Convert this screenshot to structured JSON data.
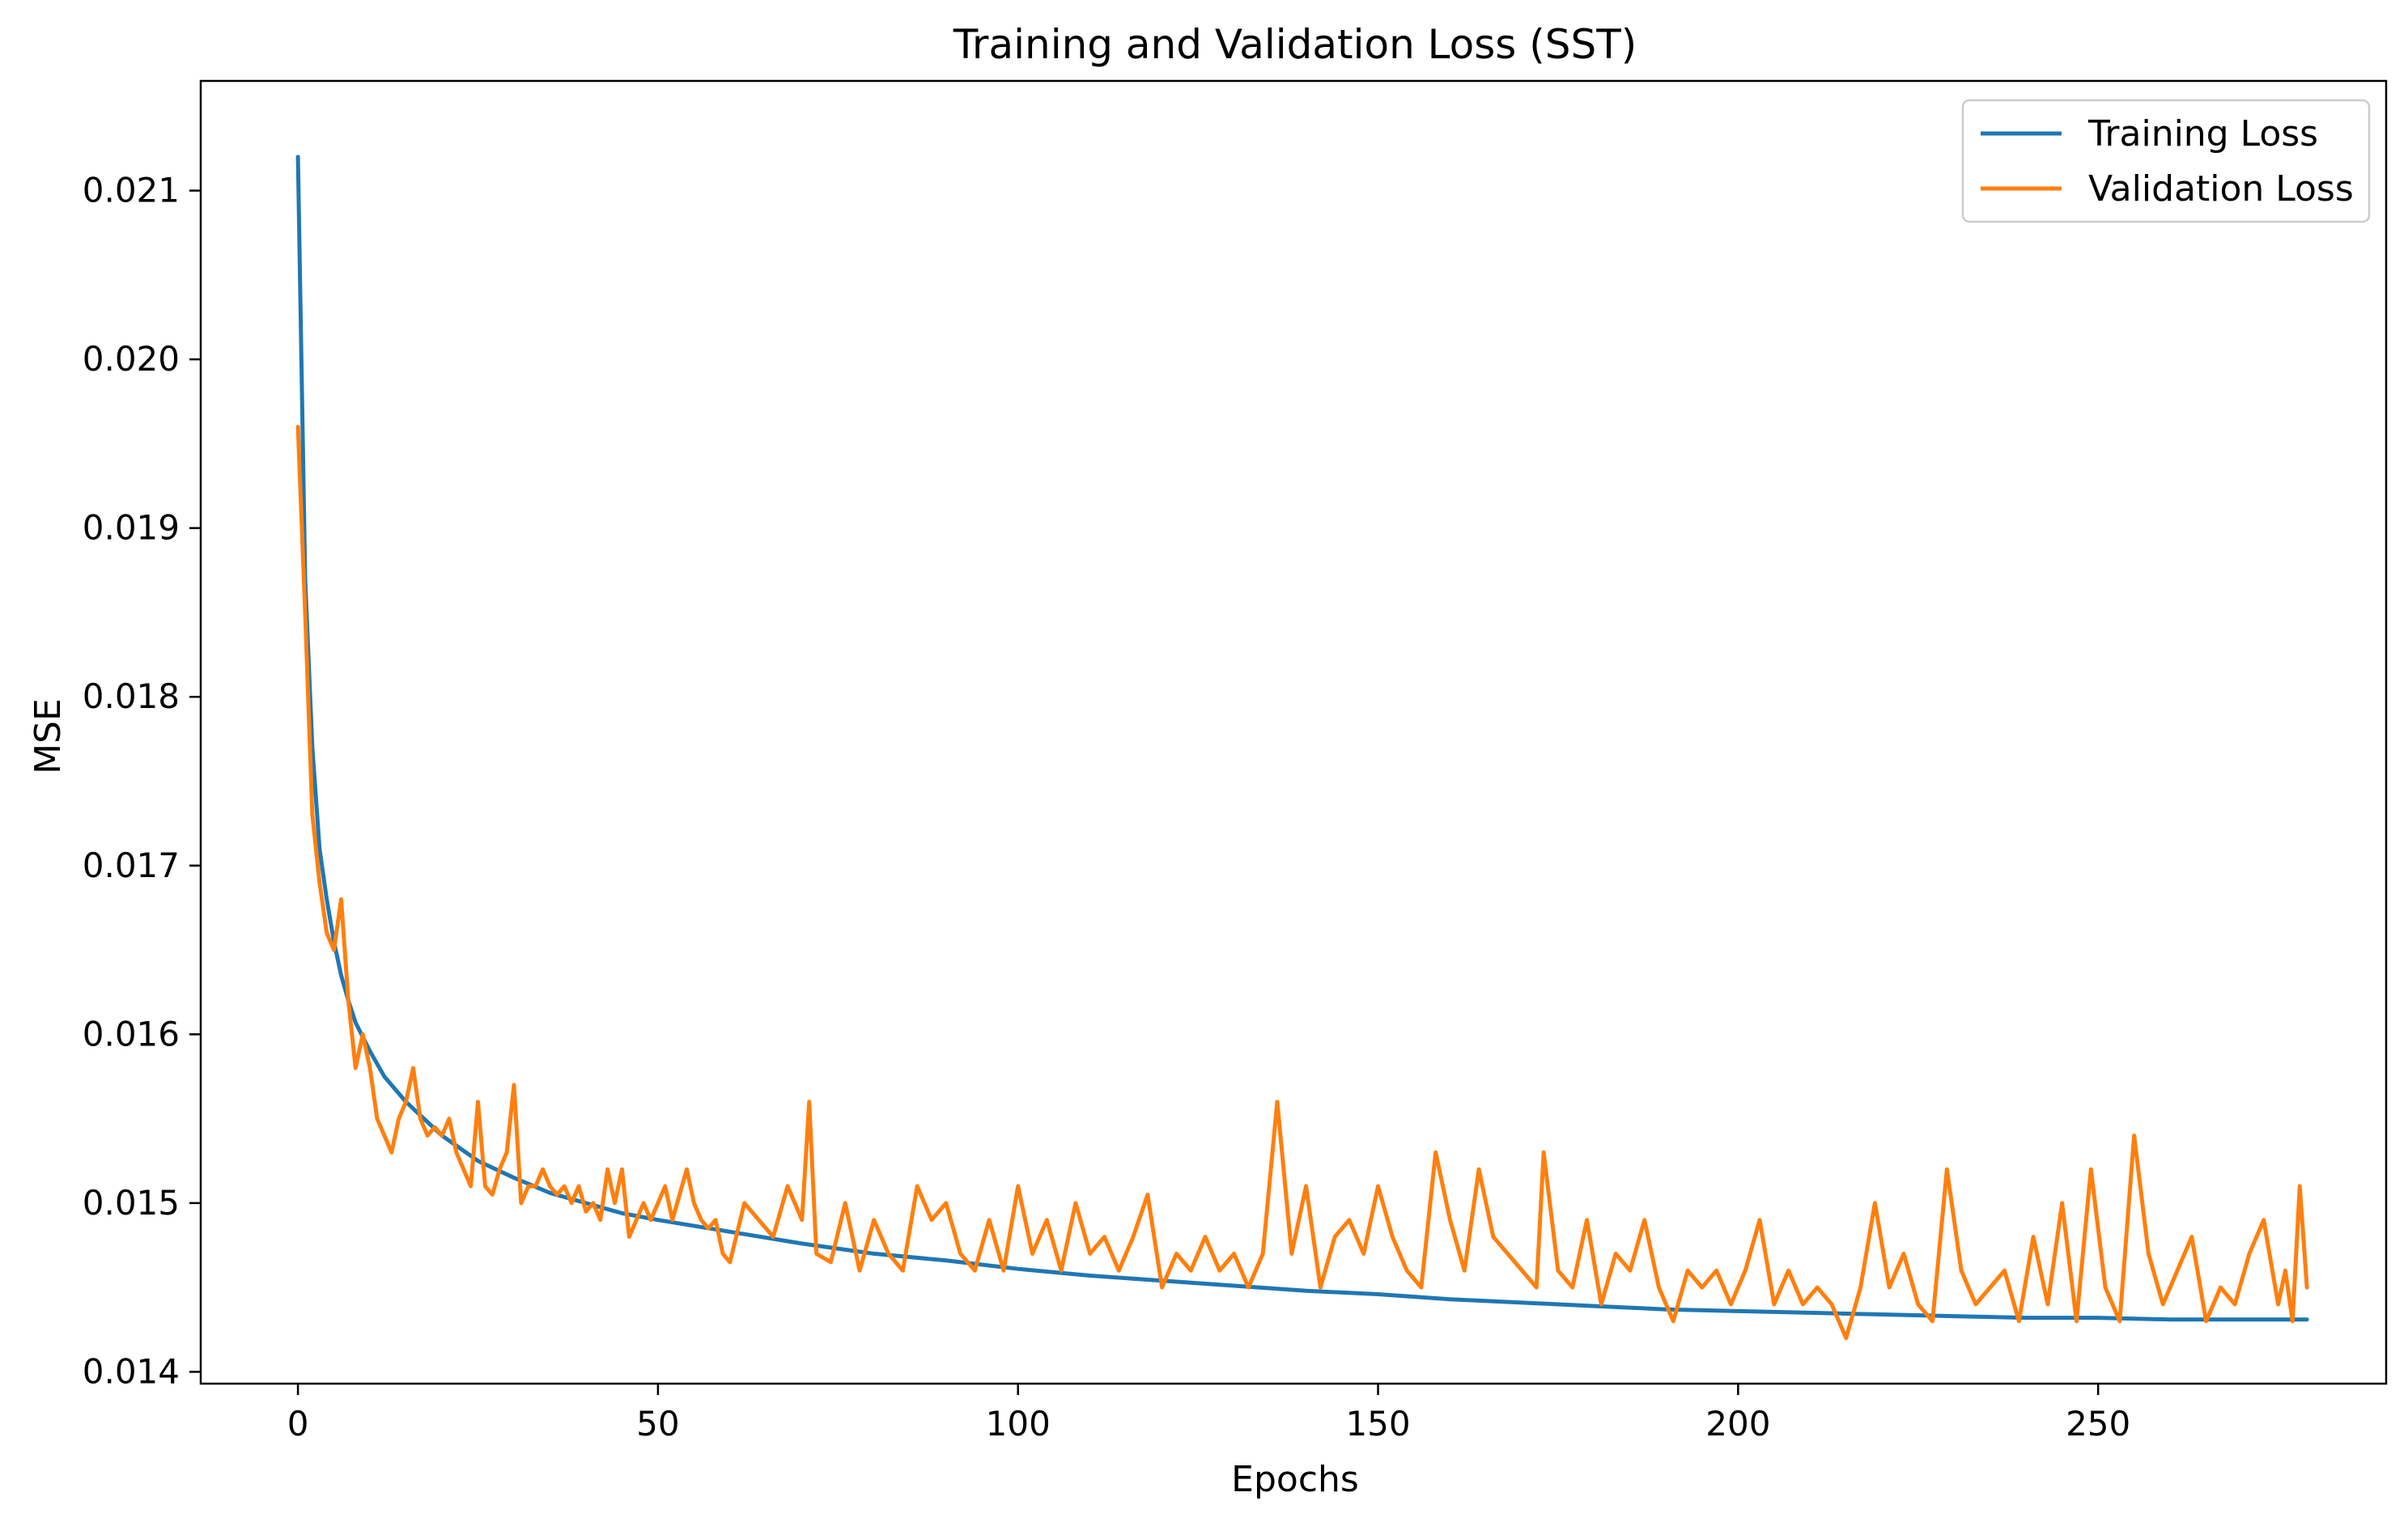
{
  "chart_data": {
    "type": "line",
    "title": "Training and Validation Loss (SST)",
    "xlabel": "Epochs",
    "ylabel": "MSE",
    "xlim": [
      -13.5,
      290
    ],
    "ylim": [
      0.01393,
      0.02165
    ],
    "xticks": [
      0,
      50,
      100,
      150,
      200,
      250
    ],
    "xtick_labels": [
      "0",
      "50",
      "100",
      "150",
      "200",
      "250"
    ],
    "yticks": [
      0.014,
      0.015,
      0.016,
      0.017,
      0.018,
      0.019,
      0.02,
      0.021
    ],
    "ytick_labels": [
      "0.014",
      "0.015",
      "0.016",
      "0.017",
      "0.018",
      "0.019",
      "0.020",
      "0.021"
    ],
    "grid": false,
    "legend_position": "top-right",
    "series": [
      {
        "name": "Training Loss",
        "color": "#1f77b4",
        "points": [
          [
            0,
            0.0212
          ],
          [
            1,
            0.0187
          ],
          [
            2,
            0.0177
          ],
          [
            3,
            0.0171
          ],
          [
            4,
            0.0168
          ],
          [
            5,
            0.01655
          ],
          [
            6,
            0.01635
          ],
          [
            7,
            0.0162
          ],
          [
            8,
            0.01607
          ],
          [
            10,
            0.0159
          ],
          [
            12,
            0.01575
          ],
          [
            15,
            0.0156
          ],
          [
            18,
            0.01548
          ],
          [
            20,
            0.0154
          ],
          [
            25,
            0.01525
          ],
          [
            30,
            0.01515
          ],
          [
            35,
            0.01506
          ],
          [
            40,
            0.015
          ],
          [
            45,
            0.01494
          ],
          [
            50,
            0.0149
          ],
          [
            60,
            0.01483
          ],
          [
            70,
            0.01476
          ],
          [
            80,
            0.0147
          ],
          [
            90,
            0.01466
          ],
          [
            100,
            0.01461
          ],
          [
            110,
            0.01457
          ],
          [
            120,
            0.01454
          ],
          [
            130,
            0.01451
          ],
          [
            140,
            0.01448
          ],
          [
            150,
            0.01446
          ],
          [
            160,
            0.01443
          ],
          [
            170,
            0.01441
          ],
          [
            180,
            0.01439
          ],
          [
            190,
            0.01437
          ],
          [
            200,
            0.01436
          ],
          [
            210,
            0.01435
          ],
          [
            220,
            0.01434
          ],
          [
            230,
            0.01433
          ],
          [
            240,
            0.01432
          ],
          [
            250,
            0.01432
          ],
          [
            260,
            0.01431
          ],
          [
            270,
            0.01431
          ],
          [
            279,
            0.01431
          ]
        ]
      },
      {
        "name": "Validation Loss",
        "color": "#ff7f0e",
        "points": [
          [
            0,
            0.0196
          ],
          [
            1,
            0.0185
          ],
          [
            2,
            0.0173
          ],
          [
            3,
            0.0169
          ],
          [
            4,
            0.0166
          ],
          [
            5,
            0.0165
          ],
          [
            6,
            0.0168
          ],
          [
            7,
            0.0162
          ],
          [
            8,
            0.0158
          ],
          [
            9,
            0.016
          ],
          [
            10,
            0.0158
          ],
          [
            11,
            0.0155
          ],
          [
            12,
            0.0154
          ],
          [
            13,
            0.0153
          ],
          [
            14,
            0.0155
          ],
          [
            15,
            0.0156
          ],
          [
            16,
            0.0158
          ],
          [
            17,
            0.0155
          ],
          [
            18,
            0.0154
          ],
          [
            19,
            0.01545
          ],
          [
            20,
            0.0154
          ],
          [
            21,
            0.0155
          ],
          [
            22,
            0.0153
          ],
          [
            23,
            0.0152
          ],
          [
            24,
            0.0151
          ],
          [
            25,
            0.0156
          ],
          [
            26,
            0.0151
          ],
          [
            27,
            0.01505
          ],
          [
            28,
            0.0152
          ],
          [
            29,
            0.0153
          ],
          [
            30,
            0.0157
          ],
          [
            31,
            0.015
          ],
          [
            32,
            0.0151
          ],
          [
            33,
            0.0151
          ],
          [
            34,
            0.0152
          ],
          [
            35,
            0.0151
          ],
          [
            36,
            0.01505
          ],
          [
            37,
            0.0151
          ],
          [
            38,
            0.015
          ],
          [
            39,
            0.0151
          ],
          [
            40,
            0.01495
          ],
          [
            41,
            0.015
          ],
          [
            42,
            0.0149
          ],
          [
            43,
            0.0152
          ],
          [
            44,
            0.015
          ],
          [
            45,
            0.0152
          ],
          [
            46,
            0.0148
          ],
          [
            47,
            0.0149
          ],
          [
            48,
            0.015
          ],
          [
            49,
            0.0149
          ],
          [
            50,
            0.015
          ],
          [
            51,
            0.0151
          ],
          [
            52,
            0.0149
          ],
          [
            53,
            0.01505
          ],
          [
            54,
            0.0152
          ],
          [
            55,
            0.015
          ],
          [
            56,
            0.0149
          ],
          [
            57,
            0.01485
          ],
          [
            58,
            0.0149
          ],
          [
            59,
            0.0147
          ],
          [
            60,
            0.01465
          ],
          [
            62,
            0.015
          ],
          [
            64,
            0.0149
          ],
          [
            66,
            0.0148
          ],
          [
            68,
            0.0151
          ],
          [
            70,
            0.0149
          ],
          [
            71,
            0.0156
          ],
          [
            72,
            0.0147
          ],
          [
            74,
            0.01465
          ],
          [
            76,
            0.015
          ],
          [
            78,
            0.0146
          ],
          [
            80,
            0.0149
          ],
          [
            82,
            0.0147
          ],
          [
            84,
            0.0146
          ],
          [
            86,
            0.0151
          ],
          [
            88,
            0.0149
          ],
          [
            90,
            0.015
          ],
          [
            92,
            0.0147
          ],
          [
            94,
            0.0146
          ],
          [
            96,
            0.0149
          ],
          [
            98,
            0.0146
          ],
          [
            100,
            0.0151
          ],
          [
            102,
            0.0147
          ],
          [
            104,
            0.0149
          ],
          [
            106,
            0.0146
          ],
          [
            108,
            0.015
          ],
          [
            110,
            0.0147
          ],
          [
            112,
            0.0148
          ],
          [
            114,
            0.0146
          ],
          [
            116,
            0.0148
          ],
          [
            118,
            0.01505
          ],
          [
            120,
            0.0145
          ],
          [
            122,
            0.0147
          ],
          [
            124,
            0.0146
          ],
          [
            126,
            0.0148
          ],
          [
            128,
            0.0146
          ],
          [
            130,
            0.0147
          ],
          [
            132,
            0.0145
          ],
          [
            134,
            0.0147
          ],
          [
            136,
            0.0156
          ],
          [
            138,
            0.0147
          ],
          [
            140,
            0.0151
          ],
          [
            142,
            0.0145
          ],
          [
            144,
            0.0148
          ],
          [
            146,
            0.0149
          ],
          [
            148,
            0.0147
          ],
          [
            150,
            0.0151
          ],
          [
            152,
            0.0148
          ],
          [
            154,
            0.0146
          ],
          [
            156,
            0.0145
          ],
          [
            158,
            0.0153
          ],
          [
            160,
            0.0149
          ],
          [
            162,
            0.0146
          ],
          [
            164,
            0.0152
          ],
          [
            166,
            0.0148
          ],
          [
            168,
            0.0147
          ],
          [
            170,
            0.0146
          ],
          [
            172,
            0.0145
          ],
          [
            173,
            0.0153
          ],
          [
            175,
            0.0146
          ],
          [
            177,
            0.0145
          ],
          [
            179,
            0.0149
          ],
          [
            181,
            0.0144
          ],
          [
            183,
            0.0147
          ],
          [
            185,
            0.0146
          ],
          [
            187,
            0.0149
          ],
          [
            189,
            0.0145
          ],
          [
            191,
            0.0143
          ],
          [
            193,
            0.0146
          ],
          [
            195,
            0.0145
          ],
          [
            197,
            0.0146
          ],
          [
            199,
            0.0144
          ],
          [
            201,
            0.0146
          ],
          [
            203,
            0.0149
          ],
          [
            205,
            0.0144
          ],
          [
            207,
            0.0146
          ],
          [
            209,
            0.0144
          ],
          [
            211,
            0.0145
          ],
          [
            213,
            0.0144
          ],
          [
            215,
            0.0142
          ],
          [
            217,
            0.0145
          ],
          [
            219,
            0.015
          ],
          [
            221,
            0.0145
          ],
          [
            223,
            0.0147
          ],
          [
            225,
            0.0144
          ],
          [
            227,
            0.0143
          ],
          [
            229,
            0.0152
          ],
          [
            231,
            0.0146
          ],
          [
            233,
            0.0144
          ],
          [
            235,
            0.0145
          ],
          [
            237,
            0.0146
          ],
          [
            239,
            0.0143
          ],
          [
            241,
            0.0148
          ],
          [
            243,
            0.0144
          ],
          [
            245,
            0.015
          ],
          [
            247,
            0.0143
          ],
          [
            249,
            0.0152
          ],
          [
            251,
            0.0145
          ],
          [
            253,
            0.0143
          ],
          [
            255,
            0.0154
          ],
          [
            257,
            0.0147
          ],
          [
            259,
            0.0144
          ],
          [
            261,
            0.0146
          ],
          [
            263,
            0.0148
          ],
          [
            265,
            0.0143
          ],
          [
            267,
            0.0145
          ],
          [
            269,
            0.0144
          ],
          [
            271,
            0.0147
          ],
          [
            273,
            0.0149
          ],
          [
            275,
            0.0144
          ],
          [
            276,
            0.0146
          ],
          [
            277,
            0.0143
          ],
          [
            278,
            0.0151
          ],
          [
            279,
            0.0145
          ]
        ]
      }
    ]
  }
}
